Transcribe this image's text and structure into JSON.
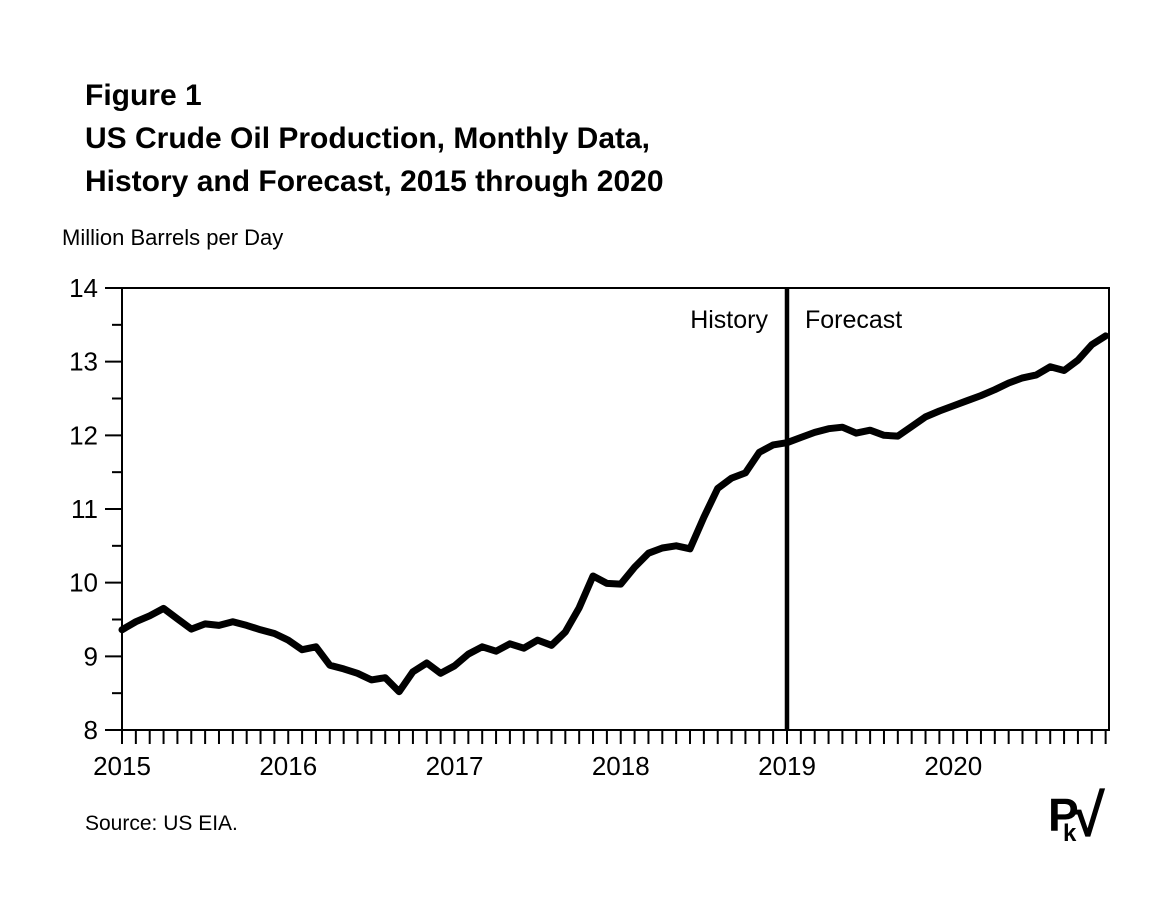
{
  "figure": {
    "title_line1": "Figure 1",
    "title_line2": "US Crude Oil Production, Monthly Data,",
    "title_line3": "History and Forecast, 2015 through 2020",
    "unit_label": "Million Barrels per Day",
    "source": "Source: US EIA.",
    "logo": {
      "p": "P",
      "k": "k",
      "radical": "√"
    }
  },
  "colors": {
    "ink": "#000000",
    "background": "#ffffff",
    "line": "#000000"
  },
  "chart_data": {
    "type": "line",
    "title": "US Crude Oil Production, Monthly Data, History and Forecast, 2015 through 2020",
    "ylabel": "Million Barrels per Day",
    "xlabel": "",
    "ylim": [
      8,
      14
    ],
    "y_major_ticks": [
      8,
      9,
      10,
      11,
      12,
      13,
      14
    ],
    "y_minor_ticks": [
      8.5,
      9.5,
      10.5,
      11.5,
      12.5,
      13.5
    ],
    "x_year_labels": [
      "2015",
      "2016",
      "2017",
      "2018",
      "2019",
      "2020"
    ],
    "x_minor_tick": "monthly",
    "grid": false,
    "legend_position": "none",
    "divider": {
      "at": "2019-01",
      "label_left": "History",
      "label_right": "Forecast"
    },
    "series": [
      {
        "name": "US crude oil production, million barrels per day",
        "start": "2015-01",
        "frequency": "monthly",
        "history_through": "2018-12",
        "forecast_through": "2020-12",
        "values": [
          9.36,
          9.47,
          9.55,
          9.65,
          9.51,
          9.37,
          9.44,
          9.42,
          9.47,
          9.42,
          9.36,
          9.31,
          9.22,
          9.09,
          9.13,
          8.88,
          8.83,
          8.77,
          8.68,
          8.71,
          8.52,
          8.79,
          8.91,
          8.77,
          8.87,
          9.03,
          9.13,
          9.07,
          9.17,
          9.11,
          9.22,
          9.15,
          9.33,
          9.66,
          10.09,
          9.99,
          9.98,
          10.21,
          10.4,
          10.47,
          10.5,
          10.46,
          10.89,
          11.28,
          11.42,
          11.49,
          11.77,
          11.87,
          11.9,
          11.97,
          12.04,
          12.09,
          12.11,
          12.03,
          12.07,
          12.0,
          11.99,
          12.12,
          12.25,
          12.33,
          12.4,
          12.47,
          12.54,
          12.62,
          12.71,
          12.78,
          12.82,
          12.93,
          12.88,
          13.02,
          13.23,
          13.35
        ]
      }
    ]
  }
}
